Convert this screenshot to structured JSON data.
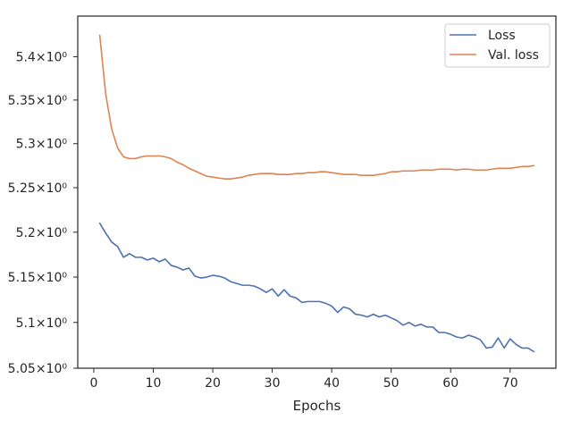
{
  "chart_data": {
    "type": "line",
    "title": "",
    "xlabel": "Epochs",
    "ylabel": "",
    "xlim": [
      -2.7,
      77.7
    ],
    "ylim": [
      5.05,
      5.4475
    ],
    "xticks": [
      0,
      10,
      20,
      30,
      40,
      50,
      60,
      70
    ],
    "xtick_labels": [
      "0",
      "10",
      "20",
      "30",
      "40",
      "50",
      "60",
      "70"
    ],
    "yticks": [
      5.05,
      5.1,
      5.15,
      5.2,
      5.25,
      5.3,
      5.35,
      5.4
    ],
    "ytick_labels": [
      "5.05×10⁰",
      "5.1×10⁰",
      "5.15×10⁰",
      "5.2×10⁰",
      "5.25×10⁰",
      "5.3×10⁰",
      "5.35×10⁰",
      "5.4×10⁰"
    ],
    "yscale": "log",
    "grid": false,
    "legend": {
      "position": "top-right",
      "entries": [
        "Loss",
        "Val. loss"
      ]
    },
    "colors": {
      "Loss": "#4c72b0",
      "Val. loss": "#dd8452",
      "axes": "#262626"
    },
    "series": [
      {
        "name": "Loss",
        "x": [
          1,
          2,
          3,
          4,
          5,
          6,
          7,
          8,
          9,
          10,
          11,
          12,
          13,
          14,
          15,
          16,
          17,
          18,
          19,
          20,
          21,
          22,
          23,
          24,
          25,
          26,
          27,
          28,
          29,
          30,
          31,
          32,
          33,
          34,
          35,
          36,
          37,
          38,
          39,
          40,
          41,
          42,
          43,
          44,
          45,
          46,
          47,
          48,
          49,
          50,
          51,
          52,
          53,
          54,
          55,
          56,
          57,
          58,
          59,
          60,
          61,
          62,
          63,
          64,
          65,
          66,
          67,
          68,
          69,
          70,
          71,
          72,
          73,
          74
        ],
        "values": [
          5.21,
          5.199,
          5.189,
          5.184,
          5.172,
          5.176,
          5.172,
          5.172,
          5.169,
          5.171,
          5.167,
          5.17,
          5.163,
          5.161,
          5.158,
          5.16,
          5.151,
          5.149,
          5.15,
          5.152,
          5.151,
          5.149,
          5.145,
          5.143,
          5.141,
          5.141,
          5.14,
          5.137,
          5.133,
          5.137,
          5.129,
          5.136,
          5.129,
          5.127,
          5.122,
          5.123,
          5.123,
          5.123,
          5.121,
          5.118,
          5.111,
          5.117,
          5.115,
          5.109,
          5.108,
          5.106,
          5.109,
          5.106,
          5.108,
          5.105,
          5.102,
          5.097,
          5.1,
          5.096,
          5.098,
          5.095,
          5.095,
          5.089,
          5.089,
          5.087,
          5.084,
          5.083,
          5.086,
          5.084,
          5.081,
          5.072,
          5.073,
          5.083,
          5.072,
          5.082,
          5.076,
          5.072,
          5.072,
          5.068
        ]
      },
      {
        "name": "Val. loss",
        "x": [
          1,
          2,
          3,
          4,
          5,
          6,
          7,
          8,
          9,
          10,
          11,
          12,
          13,
          14,
          15,
          16,
          17,
          18,
          19,
          20,
          21,
          22,
          23,
          24,
          25,
          26,
          27,
          28,
          29,
          30,
          31,
          32,
          33,
          34,
          35,
          36,
          37,
          38,
          39,
          40,
          41,
          42,
          43,
          44,
          45,
          46,
          47,
          48,
          49,
          50,
          51,
          52,
          53,
          54,
          55,
          56,
          57,
          58,
          59,
          60,
          61,
          62,
          63,
          64,
          65,
          66,
          67,
          68,
          69,
          70,
          71,
          72,
          73,
          74
        ],
        "values": [
          5.425,
          5.357,
          5.317,
          5.295,
          5.285,
          5.283,
          5.283,
          5.285,
          5.286,
          5.286,
          5.286,
          5.285,
          5.283,
          5.279,
          5.276,
          5.272,
          5.269,
          5.266,
          5.263,
          5.262,
          5.261,
          5.26,
          5.26,
          5.261,
          5.262,
          5.264,
          5.265,
          5.266,
          5.266,
          5.266,
          5.265,
          5.265,
          5.265,
          5.266,
          5.266,
          5.267,
          5.267,
          5.268,
          5.268,
          5.267,
          5.266,
          5.265,
          5.265,
          5.265,
          5.264,
          5.264,
          5.264,
          5.265,
          5.266,
          5.268,
          5.268,
          5.269,
          5.269,
          5.269,
          5.27,
          5.27,
          5.27,
          5.271,
          5.271,
          5.271,
          5.27,
          5.271,
          5.271,
          5.27,
          5.27,
          5.27,
          5.271,
          5.272,
          5.272,
          5.272,
          5.273,
          5.274,
          5.274,
          5.275
        ]
      }
    ]
  }
}
